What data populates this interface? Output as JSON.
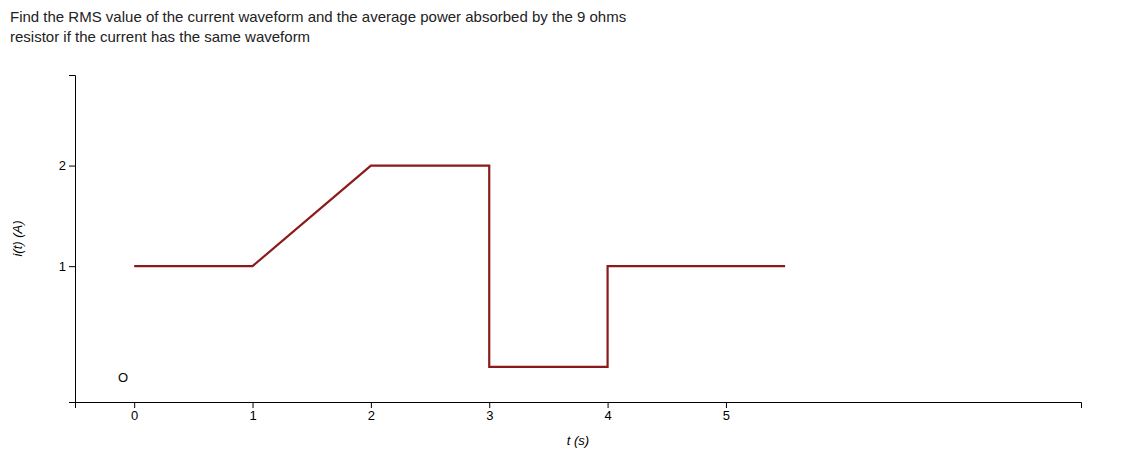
{
  "chart_data": {
    "type": "line",
    "title": "Find the RMS value of the current waveform and the average power absorbed by the 9 ohms\nresistor if the current has the same waveform",
    "x_label": "t (s)",
    "y_label": "i(t) (A)",
    "x": [
      0,
      1,
      2,
      3,
      3,
      4,
      4,
      5.5
    ],
    "values": [
      1,
      1,
      2,
      2,
      0,
      0,
      1,
      1
    ],
    "color": "#8B1A1A",
    "xlim": [
      -0.5,
      8.0
    ],
    "ylim": [
      -0.35,
      2.9
    ],
    "xticks": [
      0,
      1,
      2,
      3,
      4,
      5
    ],
    "yticks": [
      1,
      2
    ],
    "grid": false,
    "annotations": [
      {
        "text": "O",
        "x": 0,
        "y": 0
      }
    ]
  }
}
